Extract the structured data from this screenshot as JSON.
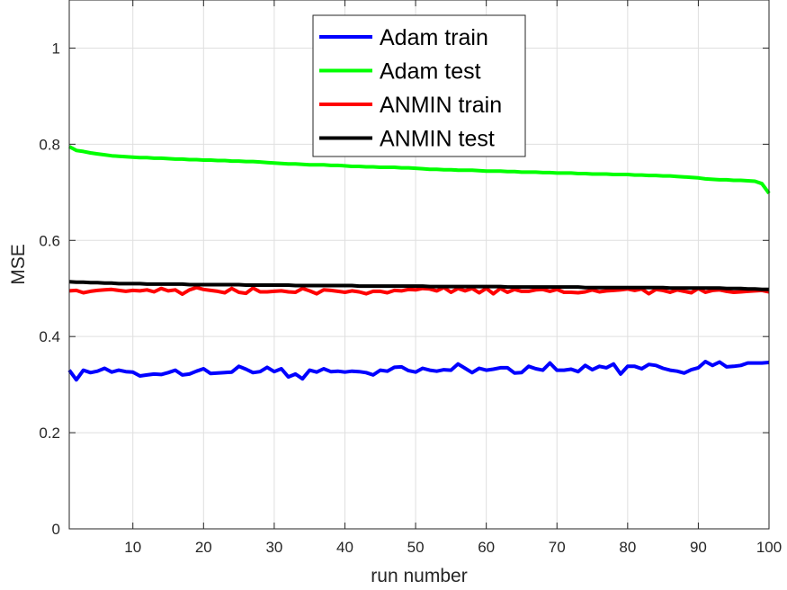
{
  "chart_data": {
    "type": "line",
    "xlabel": "run number",
    "ylabel": "MSE",
    "xlim": [
      1,
      100
    ],
    "ylim": [
      0,
      1.1
    ],
    "x_ticks": [
      "10",
      "20",
      "30",
      "40",
      "50",
      "60",
      "70",
      "80",
      "90",
      "100"
    ],
    "y_ticks": [
      "0",
      "0.2",
      "0.4",
      "0.6",
      "0.8",
      "1"
    ],
    "grid": true,
    "legend_position": "top-center",
    "x": [
      1,
      2,
      3,
      4,
      5,
      6,
      7,
      8,
      9,
      10,
      11,
      12,
      13,
      14,
      15,
      16,
      17,
      18,
      19,
      20,
      21,
      22,
      23,
      24,
      25,
      26,
      27,
      28,
      29,
      30,
      31,
      32,
      33,
      34,
      35,
      36,
      37,
      38,
      39,
      40,
      41,
      42,
      43,
      44,
      45,
      46,
      47,
      48,
      49,
      50,
      51,
      52,
      53,
      54,
      55,
      56,
      57,
      58,
      59,
      60,
      61,
      62,
      63,
      64,
      65,
      66,
      67,
      68,
      69,
      70,
      71,
      72,
      73,
      74,
      75,
      76,
      77,
      78,
      79,
      80,
      81,
      82,
      83,
      84,
      85,
      86,
      87,
      88,
      89,
      90,
      91,
      92,
      93,
      94,
      95,
      96,
      97,
      98,
      99,
      100
    ],
    "series": [
      {
        "name": "Adam train",
        "color": "#0000ff",
        "values": [
          0.33,
          0.31,
          0.33,
          0.325,
          0.328,
          0.334,
          0.326,
          0.33,
          0.327,
          0.326,
          0.318,
          0.32,
          0.322,
          0.321,
          0.325,
          0.33,
          0.32,
          0.322,
          0.328,
          0.333,
          0.323,
          0.324,
          0.325,
          0.326,
          0.338,
          0.332,
          0.325,
          0.327,
          0.336,
          0.327,
          0.333,
          0.316,
          0.322,
          0.312,
          0.33,
          0.326,
          0.333,
          0.327,
          0.328,
          0.326,
          0.328,
          0.327,
          0.325,
          0.32,
          0.33,
          0.328,
          0.336,
          0.337,
          0.329,
          0.326,
          0.334,
          0.33,
          0.328,
          0.331,
          0.33,
          0.343,
          0.334,
          0.325,
          0.334,
          0.33,
          0.332,
          0.335,
          0.335,
          0.324,
          0.325,
          0.338,
          0.333,
          0.33,
          0.345,
          0.33,
          0.33,
          0.332,
          0.327,
          0.34,
          0.331,
          0.338,
          0.335,
          0.343,
          0.322,
          0.338,
          0.338,
          0.333,
          0.342,
          0.34,
          0.334,
          0.33,
          0.328,
          0.324,
          0.331,
          0.335,
          0.348,
          0.34,
          0.347,
          0.337,
          0.338,
          0.34,
          0.345,
          0.345,
          0.345,
          0.346
        ]
      },
      {
        "name": "Adam test",
        "color": "#00ff00",
        "values": [
          0.795,
          0.787,
          0.785,
          0.782,
          0.78,
          0.778,
          0.776,
          0.775,
          0.774,
          0.773,
          0.772,
          0.772,
          0.771,
          0.771,
          0.77,
          0.769,
          0.769,
          0.768,
          0.768,
          0.767,
          0.767,
          0.766,
          0.766,
          0.765,
          0.765,
          0.764,
          0.764,
          0.763,
          0.762,
          0.761,
          0.76,
          0.759,
          0.759,
          0.758,
          0.757,
          0.757,
          0.757,
          0.756,
          0.756,
          0.755,
          0.754,
          0.754,
          0.753,
          0.753,
          0.752,
          0.752,
          0.752,
          0.751,
          0.751,
          0.75,
          0.749,
          0.748,
          0.748,
          0.747,
          0.747,
          0.746,
          0.746,
          0.746,
          0.745,
          0.744,
          0.744,
          0.744,
          0.743,
          0.743,
          0.742,
          0.742,
          0.742,
          0.741,
          0.741,
          0.74,
          0.74,
          0.74,
          0.739,
          0.739,
          0.738,
          0.738,
          0.738,
          0.737,
          0.737,
          0.737,
          0.736,
          0.736,
          0.735,
          0.735,
          0.734,
          0.734,
          0.733,
          0.732,
          0.731,
          0.73,
          0.728,
          0.727,
          0.726,
          0.726,
          0.725,
          0.725,
          0.724,
          0.723,
          0.718,
          0.698
        ]
      },
      {
        "name": "ANMIN train",
        "color": "#ff0000",
        "values": [
          0.495,
          0.496,
          0.491,
          0.494,
          0.496,
          0.497,
          0.498,
          0.496,
          0.494,
          0.496,
          0.495,
          0.497,
          0.493,
          0.5,
          0.495,
          0.497,
          0.488,
          0.497,
          0.502,
          0.498,
          0.496,
          0.494,
          0.491,
          0.5,
          0.492,
          0.49,
          0.501,
          0.493,
          0.493,
          0.494,
          0.495,
          0.493,
          0.492,
          0.5,
          0.495,
          0.489,
          0.497,
          0.496,
          0.494,
          0.492,
          0.495,
          0.493,
          0.489,
          0.494,
          0.494,
          0.491,
          0.496,
          0.495,
          0.498,
          0.497,
          0.5,
          0.499,
          0.495,
          0.502,
          0.492,
          0.5,
          0.495,
          0.5,
          0.491,
          0.5,
          0.489,
          0.5,
          0.492,
          0.498,
          0.494,
          0.494,
          0.497,
          0.498,
          0.494,
          0.498,
          0.492,
          0.492,
          0.491,
          0.493,
          0.497,
          0.493,
          0.495,
          0.496,
          0.497,
          0.499,
          0.496,
          0.499,
          0.489,
          0.498,
          0.496,
          0.492,
          0.497,
          0.494,
          0.491,
          0.5,
          0.492,
          0.496,
          0.497,
          0.494,
          0.492,
          0.493,
          0.494,
          0.495,
          0.496,
          0.493
        ]
      },
      {
        "name": "ANMIN test",
        "color": "#000000",
        "values": [
          0.514,
          0.513,
          0.513,
          0.512,
          0.512,
          0.511,
          0.511,
          0.51,
          0.51,
          0.51,
          0.51,
          0.509,
          0.509,
          0.509,
          0.509,
          0.509,
          0.509,
          0.508,
          0.508,
          0.508,
          0.508,
          0.508,
          0.508,
          0.508,
          0.508,
          0.507,
          0.507,
          0.507,
          0.507,
          0.507,
          0.507,
          0.507,
          0.506,
          0.506,
          0.506,
          0.506,
          0.506,
          0.506,
          0.506,
          0.506,
          0.506,
          0.505,
          0.505,
          0.505,
          0.505,
          0.505,
          0.505,
          0.505,
          0.505,
          0.505,
          0.505,
          0.504,
          0.504,
          0.504,
          0.504,
          0.504,
          0.504,
          0.504,
          0.504,
          0.504,
          0.504,
          0.504,
          0.503,
          0.503,
          0.503,
          0.503,
          0.503,
          0.503,
          0.503,
          0.503,
          0.503,
          0.503,
          0.503,
          0.502,
          0.502,
          0.502,
          0.502,
          0.502,
          0.502,
          0.502,
          0.502,
          0.502,
          0.502,
          0.502,
          0.502,
          0.501,
          0.501,
          0.501,
          0.501,
          0.501,
          0.501,
          0.501,
          0.501,
          0.5,
          0.5,
          0.5,
          0.499,
          0.499,
          0.498,
          0.498
        ]
      }
    ]
  }
}
